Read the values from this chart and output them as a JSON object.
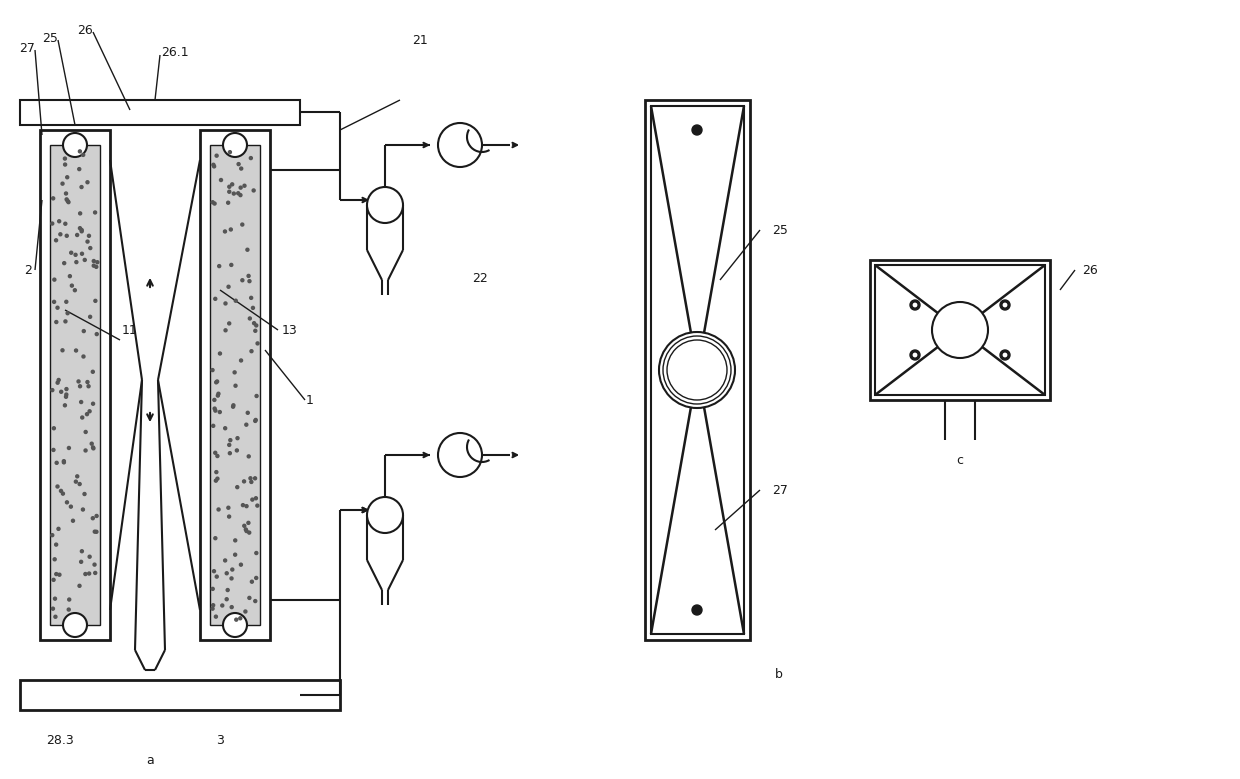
{
  "bg_color": "#ffffff",
  "line_color": "#1a1a1a",
  "line_width": 1.5,
  "thin_line": 1.0,
  "label_fontsize": 9,
  "sublabel_fontsize": 9,
  "diagram_a_label": "a",
  "diagram_b_label": "b",
  "diagram_c_label": "c"
}
